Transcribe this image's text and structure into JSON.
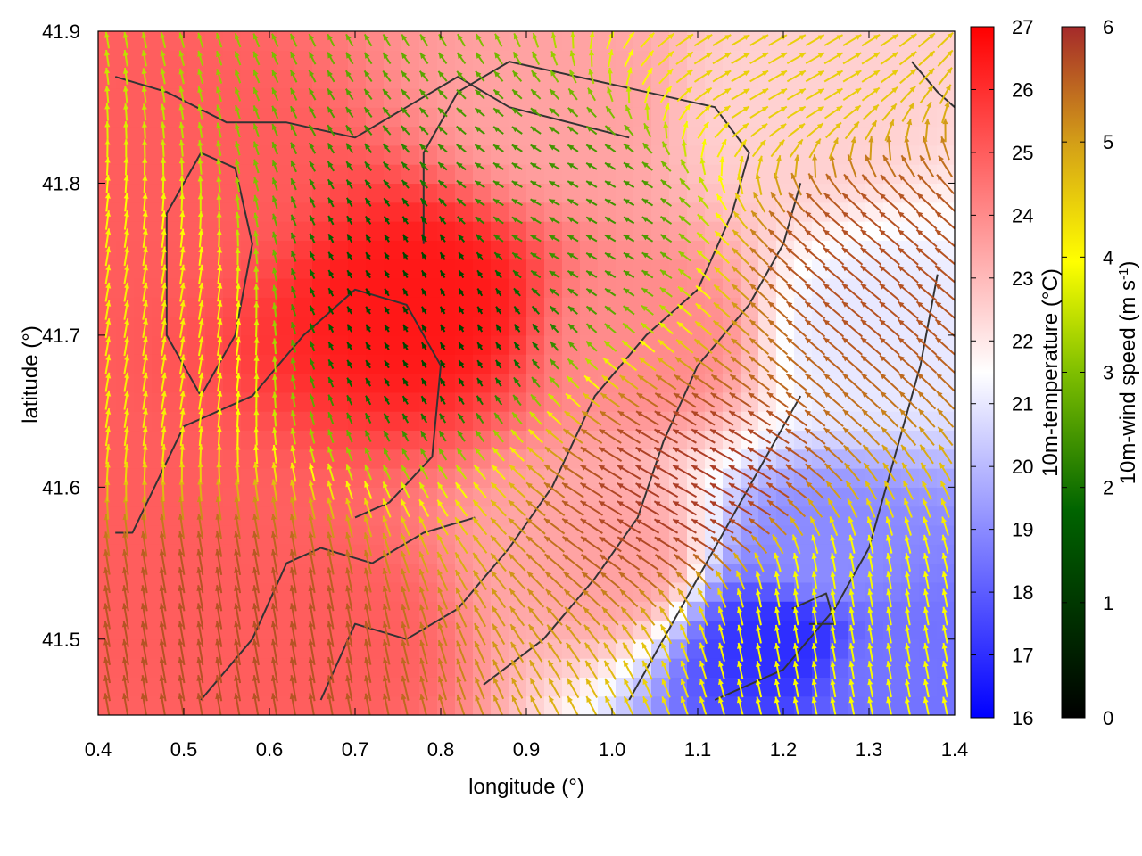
{
  "chart_data": {
    "type": "heatmap",
    "title": "",
    "xlabel": "longitude (°)",
    "ylabel": "latitude (°)",
    "xlim": [
      0.4,
      1.4
    ],
    "ylim": [
      41.45,
      41.9
    ],
    "x_ticks": [
      "0.4",
      "0.5",
      "0.6",
      "0.7",
      "0.8",
      "0.9",
      "1.0",
      "1.1",
      "1.2",
      "1.3",
      "1.4"
    ],
    "y_ticks": [
      "41.5",
      "41.6",
      "41.7",
      "41.8",
      "41.9"
    ],
    "temperature_colorbar": {
      "label": "10m-temperature (°C)",
      "range": [
        16,
        27
      ],
      "ticks": [
        "16",
        "17",
        "18",
        "19",
        "20",
        "21",
        "22",
        "23",
        "24",
        "25",
        "26",
        "27"
      ],
      "colors": [
        "#0000ff",
        "#ffffff",
        "#ff0000"
      ]
    },
    "wind_colorbar": {
      "label": "10m-wind speed (m s-1)",
      "label_main": "10m-wind speed (m s",
      "label_sup": "-1",
      "label_end": ")",
      "range": [
        0,
        6
      ],
      "ticks": [
        "0",
        "1",
        "2",
        "3",
        "4",
        "5",
        "6"
      ],
      "colors": [
        "#000000",
        "#006400",
        "#7fbf00",
        "#ffff00",
        "#d4a017",
        "#a52a2a"
      ]
    },
    "temperature_field": {
      "description_regions": [
        {
          "lon": 0.78,
          "lat": 41.72,
          "temp": 26.5
        },
        {
          "lon": 0.5,
          "lat": 41.8,
          "temp": 25.0
        },
        {
          "lon": 0.45,
          "lat": 41.55,
          "temp": 25.0
        },
        {
          "lon": 0.65,
          "lat": 41.5,
          "temp": 25.0
        },
        {
          "lon": 0.95,
          "lat": 41.85,
          "temp": 23.5
        },
        {
          "lon": 1.05,
          "lat": 41.7,
          "temp": 24.0
        },
        {
          "lon": 1.0,
          "lat": 41.55,
          "temp": 23.5
        },
        {
          "lon": 1.2,
          "lat": 41.85,
          "temp": 22.5
        },
        {
          "lon": 1.3,
          "lat": 41.7,
          "temp": 21.0
        },
        {
          "lon": 1.25,
          "lat": 41.55,
          "temp": 19.0
        },
        {
          "lon": 1.2,
          "lat": 41.5,
          "temp": 17.0
        },
        {
          "lon": 1.32,
          "lat": 41.48,
          "temp": 18.5
        }
      ]
    },
    "wind_field": {
      "regions": [
        {
          "lon": 0.78,
          "lat": 41.72,
          "speed": 0.8,
          "dir_deg": 120
        },
        {
          "lon": 0.95,
          "lat": 41.78,
          "speed": 1.8,
          "dir_deg": 150
        },
        {
          "lon": 0.45,
          "lat": 41.7,
          "speed": 3.8,
          "dir_deg": 80
        },
        {
          "lon": 0.55,
          "lat": 41.5,
          "speed": 5.6,
          "dir_deg": 100
        },
        {
          "lon": 1.1,
          "lat": 41.6,
          "speed": 5.8,
          "dir_deg": 150
        },
        {
          "lon": 1.3,
          "lat": 41.75,
          "speed": 5.6,
          "dir_deg": 140
        },
        {
          "lon": 1.25,
          "lat": 41.52,
          "speed": 3.5,
          "dir_deg": 100
        },
        {
          "lon": 1.2,
          "lat": 41.88,
          "speed": 4.2,
          "dir_deg": 30
        }
      ]
    },
    "contour_lines": true,
    "grid": false
  }
}
